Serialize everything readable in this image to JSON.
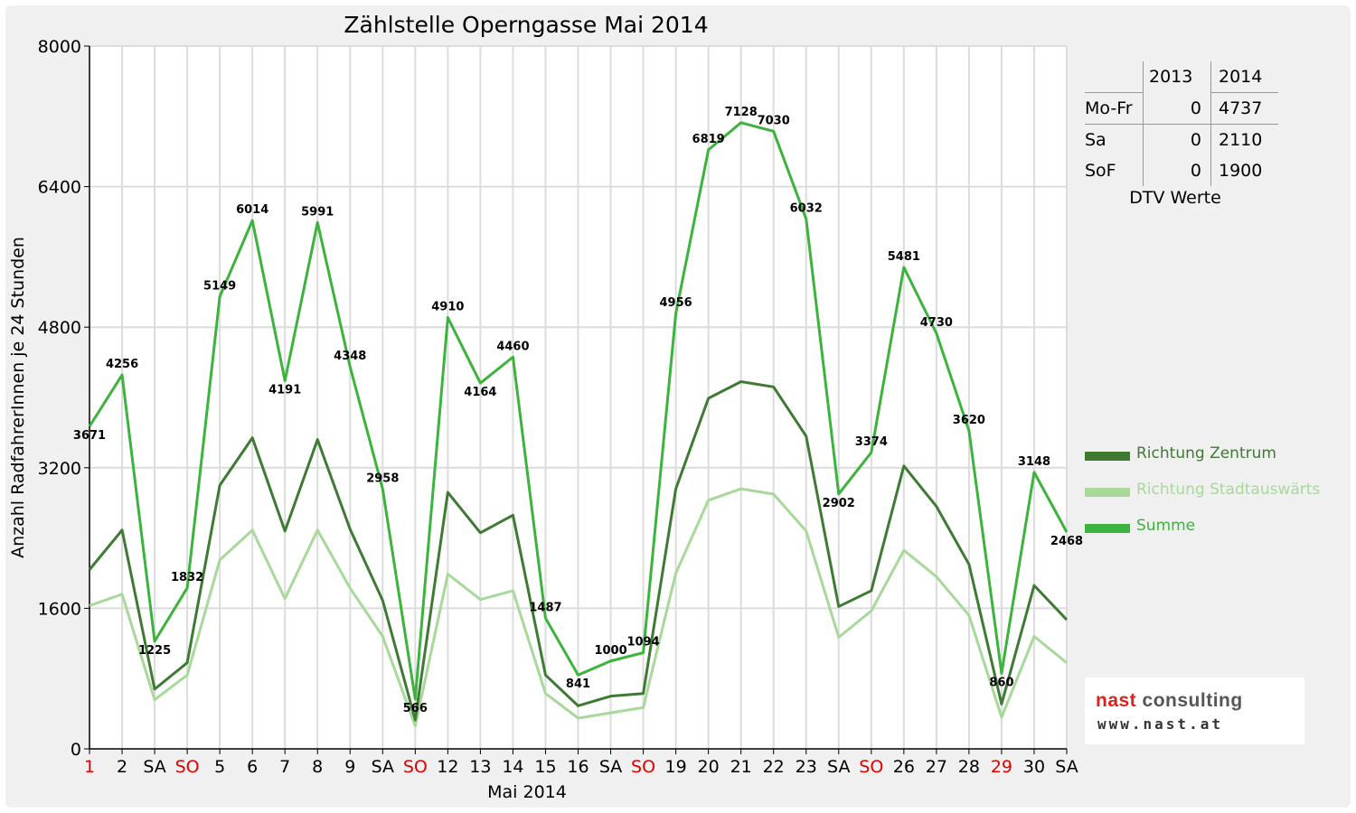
{
  "chart_data": {
    "type": "line",
    "title": "Zählstelle Operngasse Mai 2014",
    "xlabel": "Mai 2014",
    "ylabel": "Anzahl RadfahrerInnen je 24 Stunden",
    "ylim": [
      0,
      8000
    ],
    "yticks": [
      "0",
      "1600",
      "3200",
      "4800",
      "6400",
      "8000"
    ],
    "grid": true,
    "legend_position": "right",
    "categories": [
      "1",
      "2",
      "SA",
      "SO",
      "5",
      "6",
      "7",
      "8",
      "9",
      "SA",
      "SO",
      "12",
      "13",
      "14",
      "15",
      "16",
      "SA",
      "SO",
      "19",
      "20",
      "21",
      "22",
      "23",
      "SA",
      "SO",
      "26",
      "27",
      "28",
      "29",
      "30",
      "SA"
    ],
    "holiday_flags": [
      true,
      false,
      false,
      true,
      false,
      false,
      false,
      false,
      false,
      false,
      true,
      false,
      false,
      false,
      false,
      false,
      false,
      true,
      false,
      false,
      false,
      false,
      false,
      false,
      true,
      false,
      false,
      false,
      true,
      false,
      false
    ],
    "series": [
      {
        "name": "Richtung Zentrum",
        "color": "#3f7a34",
        "values": [
          2040,
          2490,
          680,
          980,
          3000,
          3540,
          2480,
          3520,
          2500,
          1690,
          330,
          2920,
          2460,
          2660,
          840,
          490,
          600,
          630,
          2960,
          3990,
          4180,
          4120,
          3560,
          1620,
          1800,
          3220,
          2760,
          2100,
          510,
          1860,
          1470
        ]
      },
      {
        "name": "Richtung Stadtauswärts",
        "color": "#a8d89a",
        "values": [
          1630,
          1760,
          560,
          840,
          2150,
          2490,
          1710,
          2490,
          1830,
          1280,
          260,
          1990,
          1700,
          1800,
          630,
          350,
          410,
          470,
          2000,
          2830,
          2960,
          2900,
          2480,
          1270,
          1570,
          2260,
          1960,
          1520,
          360,
          1280,
          980
        ]
      },
      {
        "name": "Summe",
        "color": "#3cb33c",
        "values": [
          3671,
          4256,
          1225,
          1832,
          5149,
          6014,
          4191,
          5991,
          4348,
          2958,
          566,
          4910,
          4164,
          4460,
          1487,
          841,
          1000,
          1094,
          4956,
          6819,
          7128,
          7030,
          6032,
          2902,
          3374,
          5481,
          4730,
          3620,
          860,
          3148,
          2468
        ]
      }
    ]
  },
  "dtv_table": {
    "columns": [
      "2013",
      "2014"
    ],
    "rows": [
      {
        "label": "Mo-Fr",
        "v2013": "0",
        "v2014": "4737"
      },
      {
        "label": "Sa",
        "v2013": "0",
        "v2014": "2110"
      },
      {
        "label": "SoF",
        "v2013": "0",
        "v2014": "1900"
      }
    ],
    "caption": "DTV Werte"
  },
  "logo": {
    "word1": "nast",
    "word2": " consulting",
    "line2": "www.nast.at",
    "color1": "#e0201c",
    "color2": "#555555"
  },
  "colors": {
    "frame": "#f0f0f0",
    "holiday": "#e00000",
    "axis": "#000000",
    "grid": "#dddddd"
  }
}
